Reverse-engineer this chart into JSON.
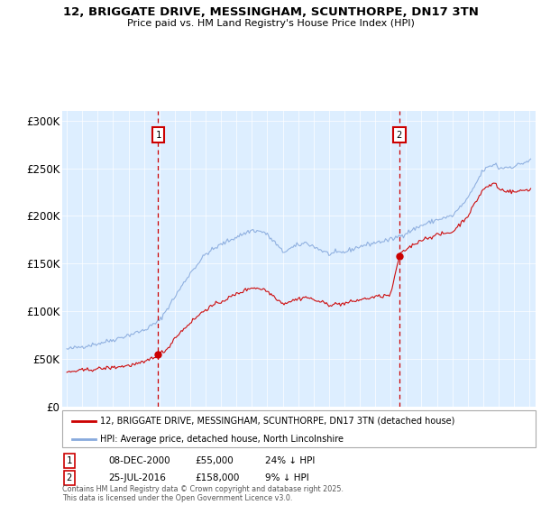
{
  "title_line1": "12, BRIGGATE DRIVE, MESSINGHAM, SCUNTHORPE, DN17 3TN",
  "title_line2": "Price paid vs. HM Land Registry's House Price Index (HPI)",
  "red_label": "12, BRIGGATE DRIVE, MESSINGHAM, SCUNTHORPE, DN17 3TN (detached house)",
  "blue_label": "HPI: Average price, detached house, North Lincolnshire",
  "sale1_date": "08-DEC-2000",
  "sale1_price": 55000,
  "sale1_hpi": "24% ↓ HPI",
  "sale2_date": "25-JUL-2016",
  "sale2_price": 158000,
  "sale2_hpi": "9% ↓ HPI",
  "footer": "Contains HM Land Registry data © Crown copyright and database right 2025.\nThis data is licensed under the Open Government Licence v3.0.",
  "ylim": [
    0,
    310000
  ],
  "yticks": [
    0,
    50000,
    100000,
    150000,
    200000,
    250000,
    300000
  ],
  "ytick_labels": [
    "£0",
    "£50K",
    "£100K",
    "£150K",
    "£200K",
    "£250K",
    "£300K"
  ],
  "red_color": "#cc0000",
  "blue_color": "#88aadd",
  "dashed_color": "#cc0000",
  "sale1_x": 2000.92,
  "sale2_x": 2016.56,
  "xmin": 1994.7,
  "xmax": 2025.4,
  "plot_bg": "#ddeeff"
}
